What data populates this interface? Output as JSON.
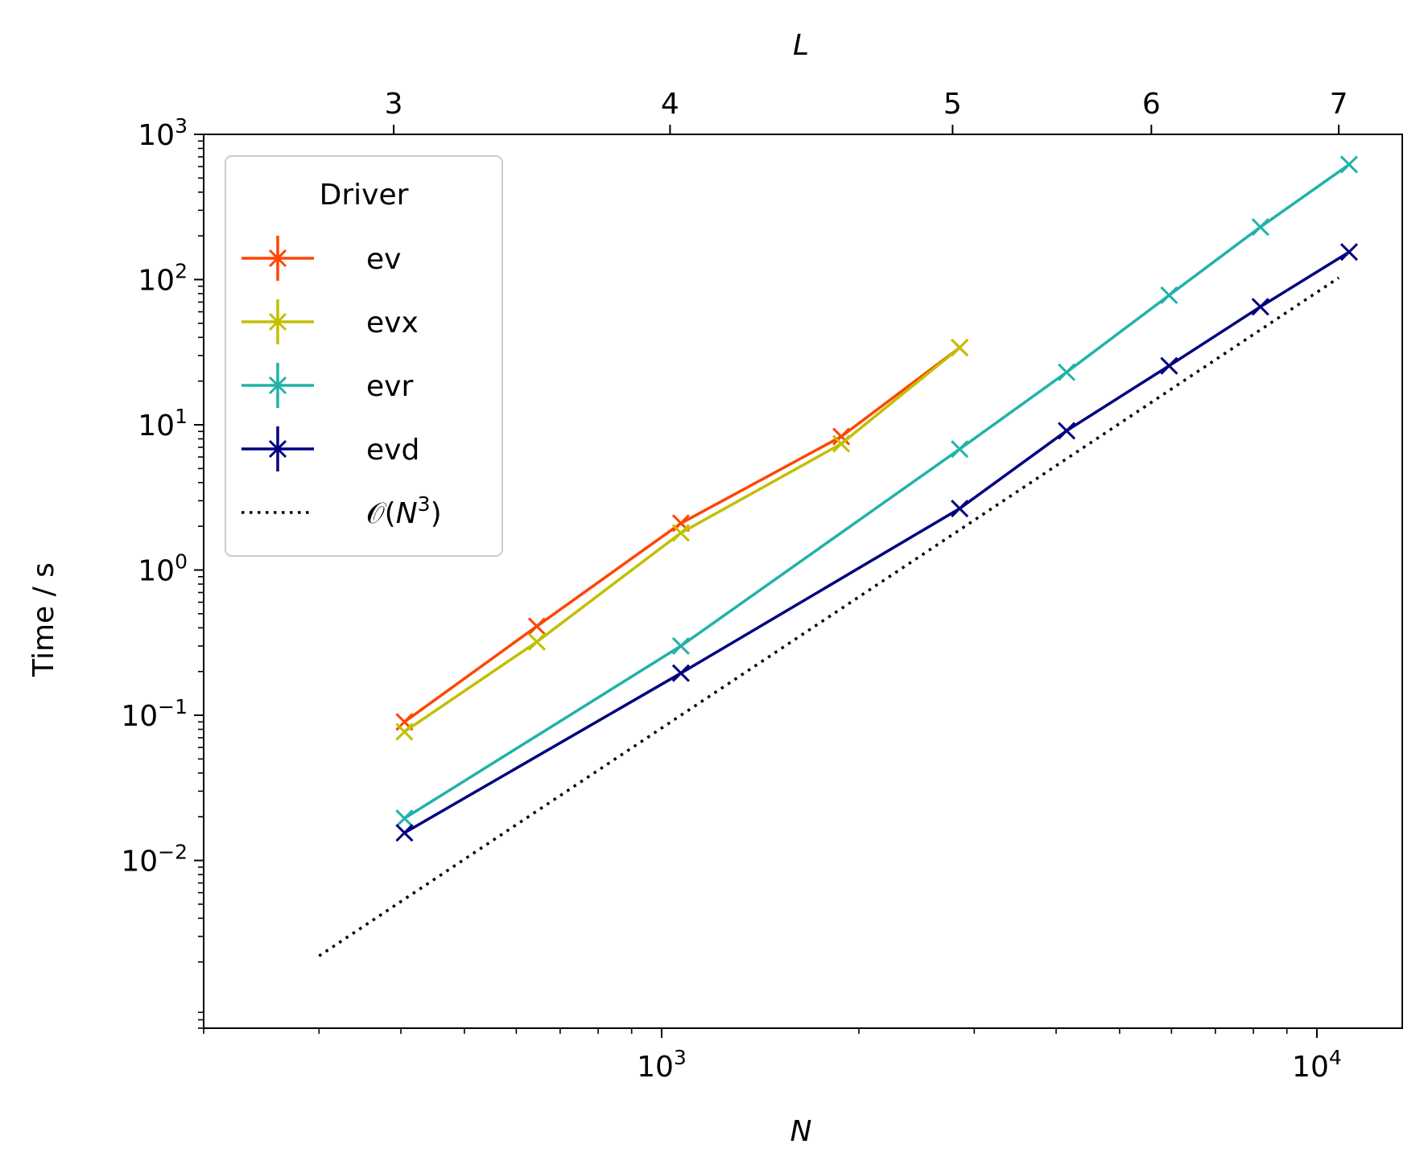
{
  "chart_data": {
    "type": "line",
    "xlabel": "N",
    "ylabel": "Time / s",
    "top_xlabel": "L",
    "xscale": "log",
    "yscale": "log",
    "xlim": [
      200,
      13500
    ],
    "ylim": [
      0.0007,
      1000
    ],
    "x_ticks": [
      {
        "value": 1000,
        "base": "10",
        "exp": "3"
      },
      {
        "value": 10000,
        "base": "10",
        "exp": "4"
      }
    ],
    "y_ticks": [
      {
        "value": 0.01,
        "base": "10",
        "exp": "−2"
      },
      {
        "value": 0.1,
        "base": "10",
        "exp": "−1"
      },
      {
        "value": 1,
        "base": "10",
        "exp": "0"
      },
      {
        "value": 10,
        "base": "10",
        "exp": "1"
      },
      {
        "value": 100,
        "base": "10",
        "exp": "2"
      },
      {
        "value": 1000,
        "base": "10",
        "exp": "3"
      }
    ],
    "top_ticks": [
      {
        "label": "3",
        "n": 390
      },
      {
        "label": "4",
        "n": 1030
      },
      {
        "label": "5",
        "n": 2780
      },
      {
        "label": "6",
        "n": 5590
      },
      {
        "label": "7",
        "n": 10800
      }
    ],
    "legend_title": "Driver",
    "legend_position": "upper-left",
    "series": [
      {
        "name": "ev",
        "color": "#ff4500",
        "marker": "x",
        "x": [
          405,
          645,
          1070,
          1880,
          2850
        ],
        "y": [
          0.09,
          0.41,
          2.1,
          8.3,
          34
        ]
      },
      {
        "name": "evx",
        "color": "#c2bf00",
        "marker": "x",
        "x": [
          405,
          645,
          1070,
          1880,
          2850
        ],
        "y": [
          0.077,
          0.32,
          1.8,
          7.4,
          34
        ]
      },
      {
        "name": "evr",
        "color": "#20b2aa",
        "marker": "x",
        "x": [
          405,
          1070,
          2850,
          4150,
          5950,
          8200,
          11200
        ],
        "y": [
          0.0195,
          0.3,
          6.8,
          23,
          78,
          230,
          620
        ]
      },
      {
        "name": "evd",
        "color": "#000080",
        "marker": "x",
        "x": [
          405,
          1070,
          2850,
          4150,
          5950,
          8200,
          11200
        ],
        "y": [
          0.0155,
          0.195,
          2.65,
          9.1,
          25.5,
          65,
          155
        ]
      }
    ],
    "reference": {
      "label_prefix": "𝒪(",
      "label_base": "N",
      "label_exp": "3",
      "label_suffix": ")",
      "style": "dotted",
      "color": "#000000",
      "x": [
        300,
        10800
      ],
      "y": [
        0.0022,
        103
      ]
    }
  }
}
